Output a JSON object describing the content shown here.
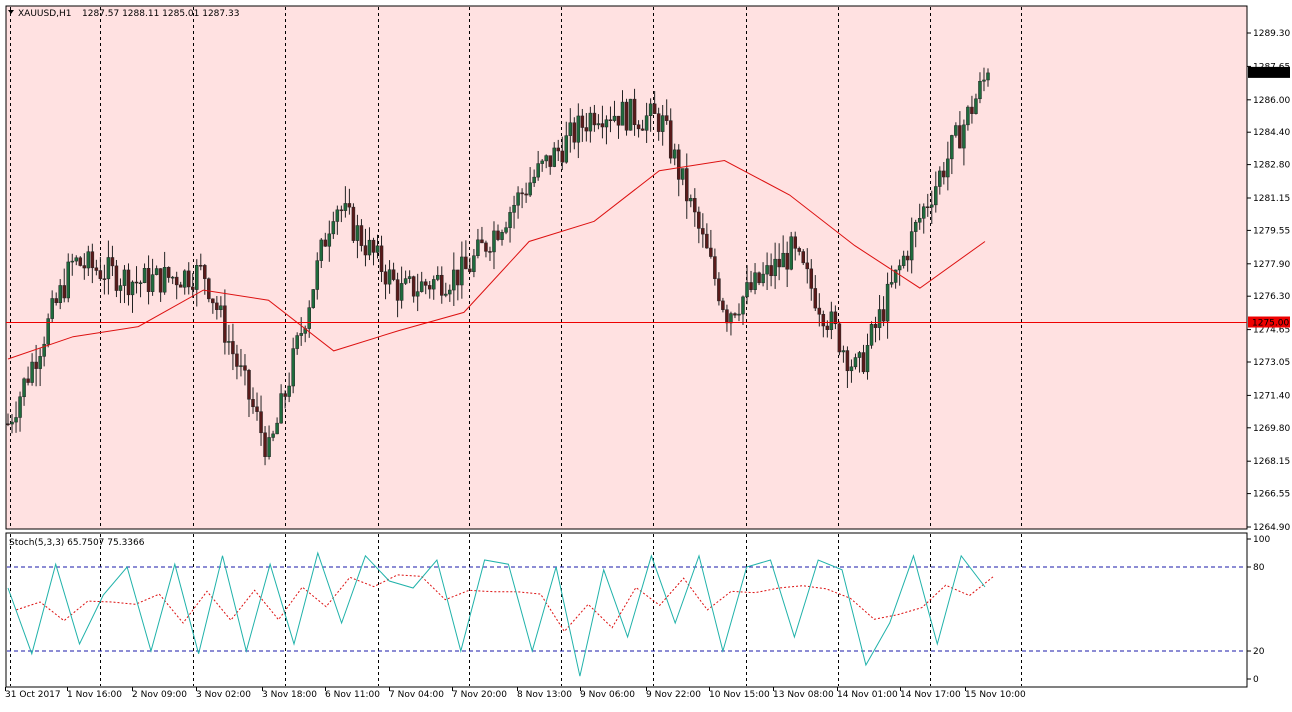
{
  "header": {
    "symbol_label": "XAUUSD,H1",
    "ohlc_label": "1287.57 1288.11 1285.01 1287.33"
  },
  "stoch": {
    "label": "Stoch(5,3,3) 65.7507 75.3366",
    "level_high": 80,
    "level_low": 20,
    "scale_labels": [
      "100",
      "80",
      "20",
      "0"
    ]
  },
  "price_axis": {
    "ticks": [
      1289.3,
      1287.65,
      1286.0,
      1284.4,
      1282.8,
      1281.15,
      1279.55,
      1277.9,
      1276.3,
      1274.65,
      1273.05,
      1271.4,
      1269.8,
      1268.15,
      1266.55,
      1264.9
    ],
    "tick_labels": [
      "1289.30",
      "1287.65",
      "1286.00",
      "1284.40",
      "1282.80",
      "1281.15",
      "1279.55",
      "1277.90",
      "1276.30",
      "1274.65",
      "1273.05",
      "1271.40",
      "1269.80",
      "1268.15",
      "1266.55",
      "1264.90"
    ],
    "current_price_label": "1287.33",
    "hline_label": "1275.00"
  },
  "time_axis": {
    "labels": [
      "31 Oct 2017",
      "1 Nov 16:00",
      "2 Nov 09:00",
      "3 Nov 02:00",
      "3 Nov 18:00",
      "6 Nov 11:00",
      "7 Nov 04:00",
      "7 Nov 20:00",
      "8 Nov 13:00",
      "9 Nov 06:00",
      "9 Nov 22:00",
      "10 Nov 15:00",
      "13 Nov 08:00",
      "14 Nov 01:00",
      "14 Nov 17:00",
      "15 Nov 10:00"
    ]
  },
  "colors": {
    "chart_bg": "#ffe1e1",
    "bull": "#1f6b3d",
    "bear": "#5a1a1a",
    "wick": "#222222",
    "ma": "#dd1111",
    "hline": "#ee0000",
    "stoch_main": "#20b2aa",
    "stoch_signal": "#dd1111",
    "stoch_level": "#1a1aaa",
    "grid": "#000000"
  },
  "chart_data": [
    {
      "type": "candlestick",
      "title": "XAUUSD,H1",
      "ylim": [
        1264.9,
        1289.3
      ],
      "horizontal_line": 1275.0,
      "close_path": [
        {
          "x": "31 Oct 2017",
          "y": 1270.0
        },
        {
          "x": "1 Nov 16:00",
          "y": 1278.0
        },
        {
          "x": "2 Nov 09:00",
          "y": 1277.0
        },
        {
          "x": "3 Nov 02:00",
          "y": 1277.5
        },
        {
          "x": "3 Nov 18:00",
          "y": 1268.5
        },
        {
          "x": "6 Nov 11:00",
          "y": 1281.0
        },
        {
          "x": "7 Nov 04:00",
          "y": 1276.5
        },
        {
          "x": "7 Nov 20:00",
          "y": 1277.5
        },
        {
          "x": "8 Nov 13:00",
          "y": 1282.0
        },
        {
          "x": "9 Nov 06:00",
          "y": 1285.5
        },
        {
          "x": "9 Nov 22:00",
          "y": 1285.0
        },
        {
          "x": "10 Nov 15:00",
          "y": 1275.5
        },
        {
          "x": "13 Nov 08:00",
          "y": 1278.5
        },
        {
          "x": "14 Nov 01:00",
          "y": 1272.5
        },
        {
          "x": "14 Nov 17:00",
          "y": 1280.5
        },
        {
          "x": "15 Nov 10:00",
          "y": 1287.33
        }
      ],
      "moving_average_path": [
        {
          "x": "31 Oct 2017",
          "y": 1273.2
        },
        {
          "x": "1 Nov 16:00",
          "y": 1274.3
        },
        {
          "x": "2 Nov 09:00",
          "y": 1274.8
        },
        {
          "x": "3 Nov 02:00",
          "y": 1276.6
        },
        {
          "x": "3 Nov 18:00",
          "y": 1276.1
        },
        {
          "x": "6 Nov 11:00",
          "y": 1273.6
        },
        {
          "x": "7 Nov 04:00",
          "y": 1274.6
        },
        {
          "x": "7 Nov 20:00",
          "y": 1275.5
        },
        {
          "x": "8 Nov 13:00",
          "y": 1279.0
        },
        {
          "x": "9 Nov 06:00",
          "y": 1280.0
        },
        {
          "x": "9 Nov 22:00",
          "y": 1282.5
        },
        {
          "x": "10 Nov 15:00",
          "y": 1283.0
        },
        {
          "x": "13 Nov 08:00",
          "y": 1281.3
        },
        {
          "x": "14 Nov 01:00",
          "y": 1278.8
        },
        {
          "x": "14 Nov 17:00",
          "y": 1276.7
        },
        {
          "x": "15 Nov 10:00",
          "y": 1279.0
        }
      ]
    },
    {
      "type": "line",
      "title": "Stoch(5,3,3) 65.7507 75.3366",
      "ylim": [
        0,
        100
      ],
      "series": [
        {
          "values": [
            65,
            18,
            82,
            25,
            60,
            80,
            20,
            82,
            18,
            88,
            20,
            82,
            25,
            90,
            40,
            88,
            70,
            65,
            85,
            20,
            85,
            82,
            20,
            80,
            2,
            78,
            30,
            88,
            40,
            88,
            20,
            80,
            85,
            30,
            85,
            78,
            10,
            40,
            88,
            25,
            88,
            65.75
          ]
        }
      ]
    }
  ]
}
